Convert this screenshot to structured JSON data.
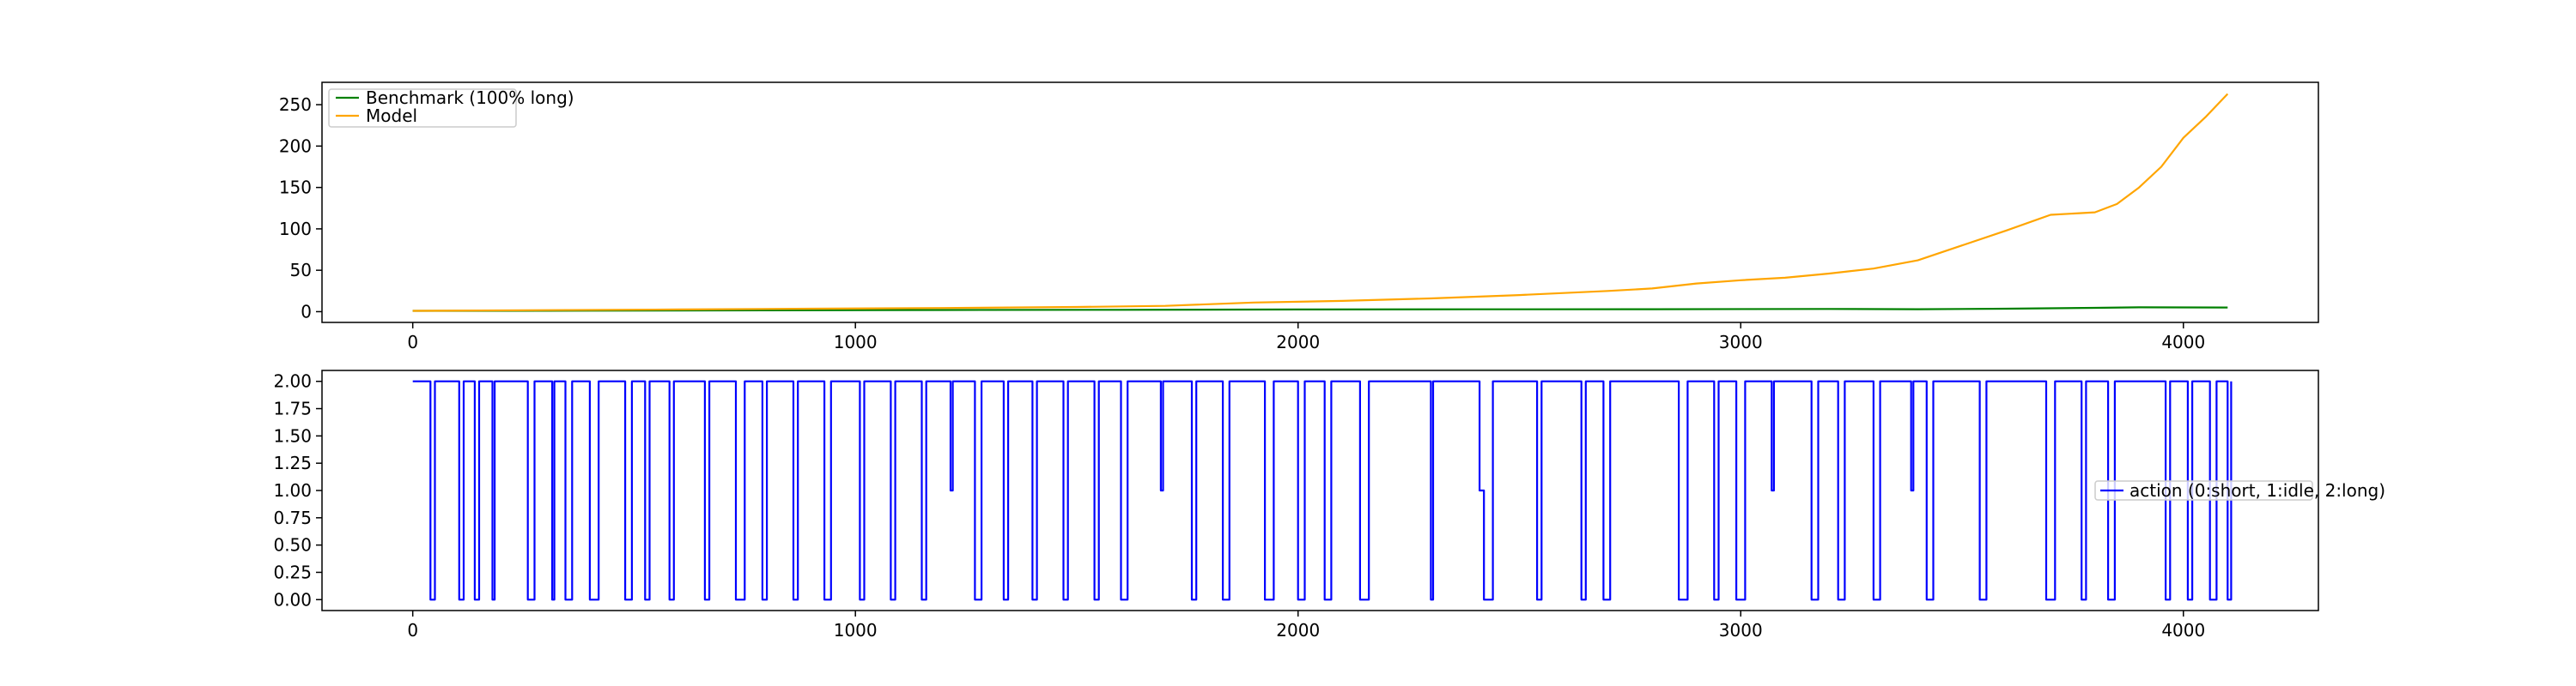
{
  "chart_data": [
    {
      "type": "line",
      "title": "",
      "xlabel": "",
      "ylabel": "",
      "xlim": [
        -205,
        4305
      ],
      "ylim": [
        -13,
        277
      ],
      "xticks": [
        0,
        1000,
        2000,
        3000,
        4000
      ],
      "yticks": [
        0,
        50,
        100,
        150,
        200,
        250
      ],
      "grid": false,
      "legend_position": "upper left",
      "series": [
        {
          "name": "Benchmark (100% long)",
          "color": "#008000",
          "points": [
            [
              0,
              1.0
            ],
            [
              400,
              1.2
            ],
            [
              800,
              1.6
            ],
            [
              1200,
              2.0
            ],
            [
              1600,
              2.2
            ],
            [
              2000,
              2.6
            ],
            [
              2400,
              2.8
            ],
            [
              2800,
              3.0
            ],
            [
              3200,
              3.3
            ],
            [
              3400,
              2.9
            ],
            [
              3600,
              3.6
            ],
            [
              3800,
              4.6
            ],
            [
              3900,
              5.2
            ],
            [
              4100,
              5.0
            ]
          ]
        },
        {
          "name": "Model",
          "color": "#ffa500",
          "points": [
            [
              0,
              1.0
            ],
            [
              300,
              1.8
            ],
            [
              600,
              2.6
            ],
            [
              900,
              3.6
            ],
            [
              1200,
              4.4
            ],
            [
              1500,
              5.6
            ],
            [
              1700,
              7.0
            ],
            [
              1900,
              11.0
            ],
            [
              2100,
              13.0
            ],
            [
              2300,
              16.0
            ],
            [
              2500,
              20.0
            ],
            [
              2700,
              25.0
            ],
            [
              2800,
              28.0
            ],
            [
              2900,
              34.0
            ],
            [
              3000,
              38.0
            ],
            [
              3100,
              41.0
            ],
            [
              3200,
              46.0
            ],
            [
              3300,
              52.0
            ],
            [
              3400,
              62.0
            ],
            [
              3500,
              80.0
            ],
            [
              3600,
              98.0
            ],
            [
              3700,
              117.0
            ],
            [
              3800,
              120.0
            ],
            [
              3850,
              130.0
            ],
            [
              3900,
              150.0
            ],
            [
              3950,
              175.0
            ],
            [
              4000,
              210.0
            ],
            [
              4050,
              235.0
            ],
            [
              4100,
              263.0
            ]
          ]
        }
      ]
    },
    {
      "type": "line",
      "title": "",
      "xlabel": "",
      "ylabel": "",
      "xlim": [
        -205,
        4305
      ],
      "ylim": [
        -0.1,
        2.1
      ],
      "xticks": [
        0,
        1000,
        2000,
        3000,
        4000
      ],
      "yticks": [
        0.0,
        0.25,
        0.5,
        0.75,
        1.0,
        1.25,
        1.5,
        1.75,
        2.0
      ],
      "ytick_labels": [
        "0.00",
        "0.25",
        "0.50",
        "0.75",
        "1.00",
        "1.25",
        "1.50",
        "1.75",
        "2.00"
      ],
      "grid": false,
      "legend_position": "center right",
      "step": true,
      "series": [
        {
          "name": "action (0:short, 1:idle, 2:long)",
          "color": "#0000ff",
          "switch_points": [
            [
              0,
              2
            ],
            [
              40,
              0
            ],
            [
              50,
              2
            ],
            [
              105,
              0
            ],
            [
              115,
              2
            ],
            [
              140,
              0
            ],
            [
              150,
              2
            ],
            [
              180,
              0
            ],
            [
              185,
              2
            ],
            [
              260,
              0
            ],
            [
              275,
              2
            ],
            [
              315,
              0
            ],
            [
              320,
              2
            ],
            [
              345,
              0
            ],
            [
              360,
              2
            ],
            [
              400,
              0
            ],
            [
              420,
              2
            ],
            [
              480,
              0
            ],
            [
              495,
              2
            ],
            [
              525,
              0
            ],
            [
              535,
              2
            ],
            [
              580,
              0
            ],
            [
              590,
              2
            ],
            [
              660,
              0
            ],
            [
              670,
              2
            ],
            [
              730,
              0
            ],
            [
              750,
              2
            ],
            [
              790,
              0
            ],
            [
              800,
              2
            ],
            [
              860,
              0
            ],
            [
              870,
              2
            ],
            [
              930,
              0
            ],
            [
              945,
              2
            ],
            [
              1010,
              0
            ],
            [
              1020,
              2
            ],
            [
              1080,
              0
            ],
            [
              1090,
              2
            ],
            [
              1150,
              0
            ],
            [
              1160,
              2
            ],
            [
              1215,
              1
            ],
            [
              1220,
              2
            ],
            [
              1270,
              0
            ],
            [
              1285,
              2
            ],
            [
              1335,
              0
            ],
            [
              1345,
              2
            ],
            [
              1400,
              0
            ],
            [
              1410,
              2
            ],
            [
              1470,
              0
            ],
            [
              1480,
              2
            ],
            [
              1540,
              0
            ],
            [
              1550,
              2
            ],
            [
              1600,
              0
            ],
            [
              1615,
              2
            ],
            [
              1690,
              1
            ],
            [
              1695,
              2
            ],
            [
              1760,
              0
            ],
            [
              1770,
              2
            ],
            [
              1830,
              0
            ],
            [
              1845,
              2
            ],
            [
              1925,
              0
            ],
            [
              1945,
              2
            ],
            [
              2000,
              0
            ],
            [
              2015,
              2
            ],
            [
              2060,
              0
            ],
            [
              2075,
              2
            ],
            [
              2140,
              0
            ],
            [
              2160,
              2
            ],
            [
              2300,
              0
            ],
            [
              2305,
              2
            ],
            [
              2410,
              1
            ],
            [
              2420,
              0
            ],
            [
              2440,
              2
            ],
            [
              2540,
              0
            ],
            [
              2550,
              2
            ],
            [
              2640,
              0
            ],
            [
              2650,
              2
            ],
            [
              2690,
              0
            ],
            [
              2705,
              2
            ],
            [
              2860,
              0
            ],
            [
              2880,
              2
            ],
            [
              2940,
              0
            ],
            [
              2950,
              2
            ],
            [
              2990,
              0
            ],
            [
              3010,
              2
            ],
            [
              3070,
              1
            ],
            [
              3075,
              2
            ],
            [
              3160,
              0
            ],
            [
              3175,
              2
            ],
            [
              3220,
              0
            ],
            [
              3235,
              2
            ],
            [
              3300,
              0
            ],
            [
              3315,
              2
            ],
            [
              3385,
              1
            ],
            [
              3390,
              2
            ],
            [
              3420,
              0
            ],
            [
              3435,
              2
            ],
            [
              3540,
              0
            ],
            [
              3555,
              2
            ],
            [
              3690,
              0
            ],
            [
              3710,
              2
            ],
            [
              3770,
              0
            ],
            [
              3780,
              2
            ],
            [
              3830,
              0
            ],
            [
              3845,
              2
            ],
            [
              3960,
              0
            ],
            [
              3970,
              2
            ],
            [
              4010,
              0
            ],
            [
              4020,
              2
            ],
            [
              4060,
              0
            ],
            [
              4075,
              2
            ],
            [
              4100,
              0
            ],
            [
              4108,
              2
            ]
          ]
        }
      ]
    }
  ]
}
